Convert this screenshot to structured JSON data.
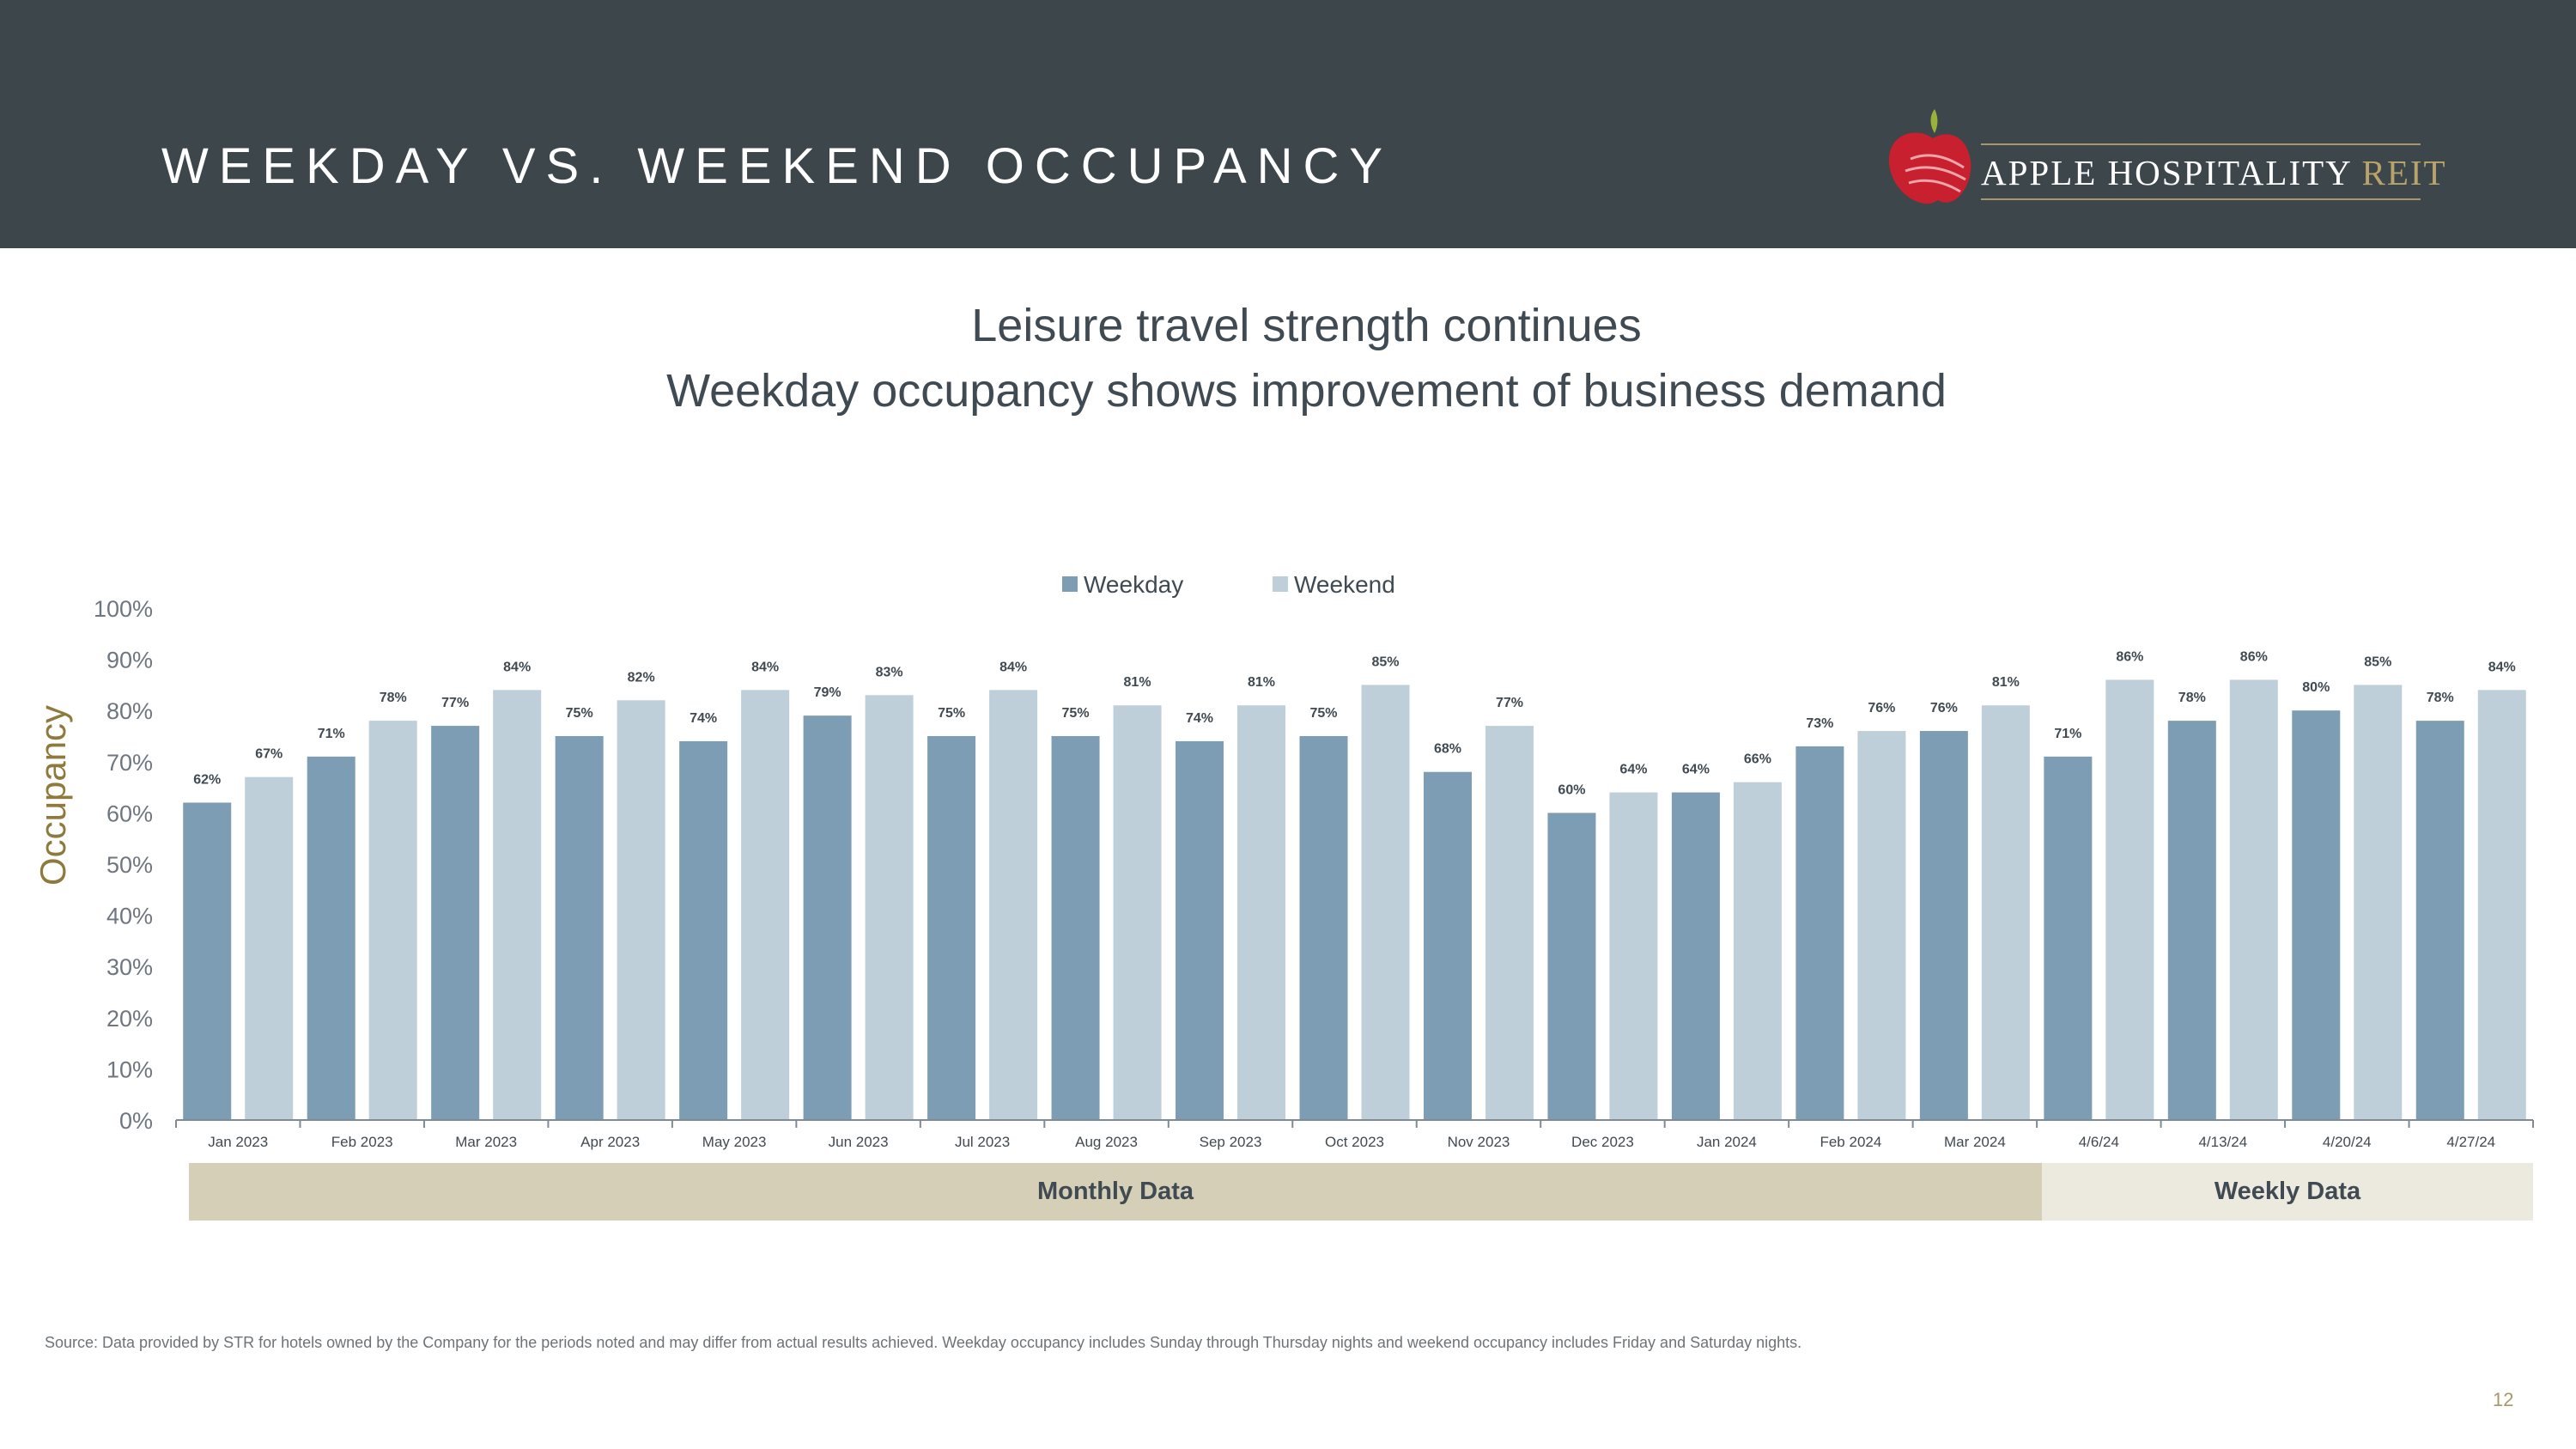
{
  "header": {
    "title": "WEEKDAY VS. WEEKEND OCCUPANCY",
    "logo_text_main": "APPLE HOSPITALITY",
    "logo_text_accent": "REIT",
    "icon": "apple-logo-icon"
  },
  "subtitle": {
    "line1": "Leisure travel strength continues",
    "line2": "Weekday occupancy shows improvement of business demand"
  },
  "chart_data": {
    "type": "bar",
    "ylabel": "Occupancy",
    "ylim": [
      0,
      100
    ],
    "yticks": [
      "0%",
      "10%",
      "20%",
      "30%",
      "40%",
      "50%",
      "60%",
      "70%",
      "80%",
      "90%",
      "100%"
    ],
    "legend_position": "top-center",
    "grid": false,
    "categories": [
      "Jan 2023",
      "Feb 2023",
      "Mar 2023",
      "Apr 2023",
      "May 2023",
      "Jun 2023",
      "Jul 2023",
      "Aug 2023",
      "Sep 2023",
      "Oct 2023",
      "Nov 2023",
      "Dec 2023",
      "Jan 2024",
      "Feb 2024",
      "Mar 2024",
      "4/6/24",
      "4/13/24",
      "4/20/24",
      "4/27/24"
    ],
    "series": [
      {
        "name": "Weekday",
        "color": "#7c9db3",
        "values": [
          62,
          71,
          77,
          75,
          74,
          79,
          75,
          75,
          74,
          75,
          68,
          60,
          64,
          73,
          76,
          71,
          78,
          80,
          78
        ]
      },
      {
        "name": "Weekend",
        "color": "#bfcfd9",
        "values": [
          67,
          78,
          84,
          82,
          84,
          83,
          84,
          81,
          81,
          85,
          77,
          64,
          66,
          76,
          81,
          86,
          86,
          85,
          84
        ]
      }
    ]
  },
  "bands": {
    "monthly_label": "Monthly Data",
    "weekly_label": "Weekly Data"
  },
  "footer": {
    "source": "Source:  Data provided by STR for hotels owned by the Company for the periods noted and may differ from actual results achieved. Weekday occupancy includes Sunday through Thursday nights and weekend occupancy includes Friday and Saturday nights.",
    "page_number": "12"
  }
}
